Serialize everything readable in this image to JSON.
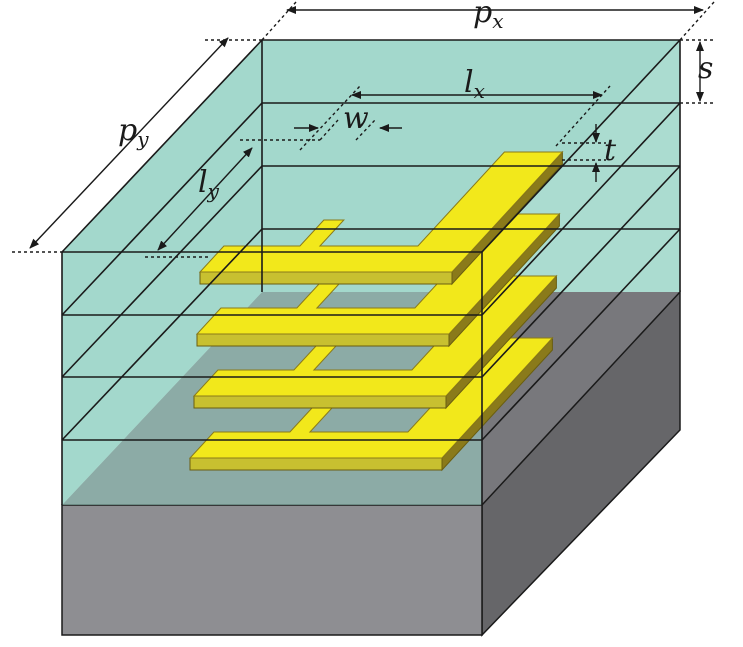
{
  "labels": {
    "px": {
      "main": "p",
      "sub": "x"
    },
    "py": {
      "main": "p",
      "sub": "y"
    },
    "lx": {
      "main": "l",
      "sub": "x"
    },
    "ly": {
      "main": "l",
      "sub": "y"
    },
    "w": "w",
    "s": "s",
    "t": "t"
  },
  "colors": {
    "dielectric": "#9cd6c8",
    "substrate_front": "#8e8e92",
    "substrate_top": "#78787c",
    "substrate_side": "#666669",
    "metal_top": "#f2e81b",
    "metal_side": "#8a7a1a",
    "metal_front": "#c8c030",
    "line": "#1a1a1a"
  }
}
